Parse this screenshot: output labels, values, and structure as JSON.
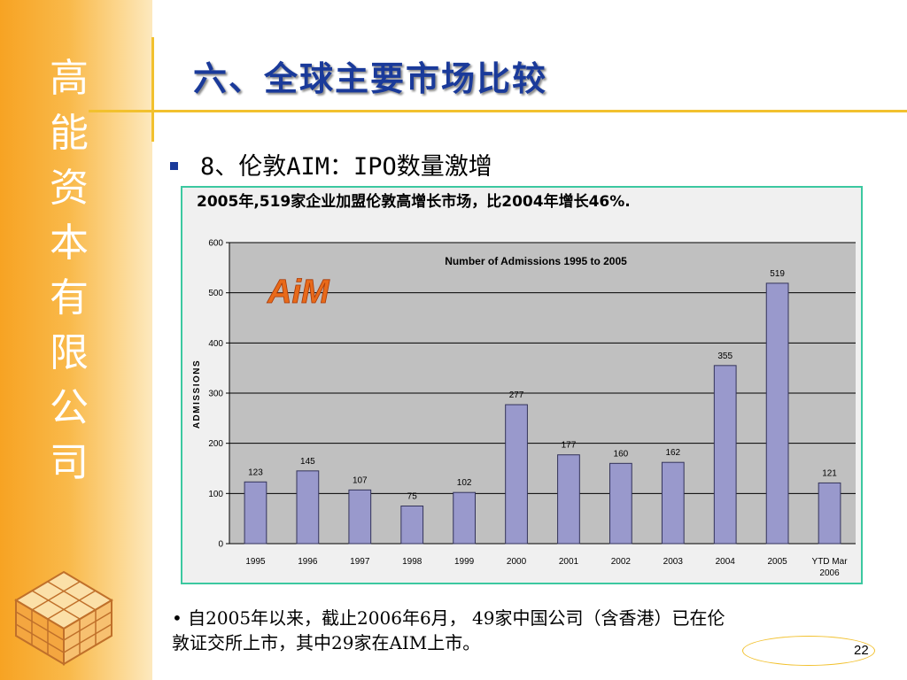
{
  "sidebar": {
    "company_chars": [
      "高",
      "能",
      "资",
      "本",
      "有",
      "限",
      "公",
      "司"
    ]
  },
  "slide": {
    "title": "六、全球主要市场比较",
    "bullet": "8、伦敦AIM：IPO数量激增",
    "headline": "2005年,519家企业加盟伦敦高增长市场，比2004年增长46%.",
    "footnote_line1": "• 自2005年以来，截止2006年6月， 49家中国公司（含香港）已在伦",
    "footnote_line2": "敦证交所上市，其中29家在AIM上市。",
    "page_number": "22"
  },
  "logo_text": "AiM",
  "colors": {
    "bar": "#9999cc",
    "bar_stroke": "#33335a",
    "plot_bg": "#c0c0c0",
    "title": "#1a3a9a",
    "accent": "#f2c12e",
    "logo": "#e86a1a"
  },
  "chart_data": {
    "type": "bar",
    "title": "Number of Admissions 1995 to 2005",
    "ylabel": "ADMISSIONS",
    "xlabel": "",
    "categories": [
      "1995",
      "1996",
      "1997",
      "1998",
      "1999",
      "2000",
      "2001",
      "2002",
      "2003",
      "2004",
      "2005",
      "YTD Mar 2006"
    ],
    "values": [
      123,
      145,
      107,
      75,
      102,
      277,
      177,
      160,
      162,
      355,
      519,
      121
    ],
    "ylim": [
      0,
      600
    ],
    "yticks": [
      0,
      100,
      200,
      300,
      400,
      500,
      600
    ],
    "grid": true,
    "legend": "none"
  }
}
